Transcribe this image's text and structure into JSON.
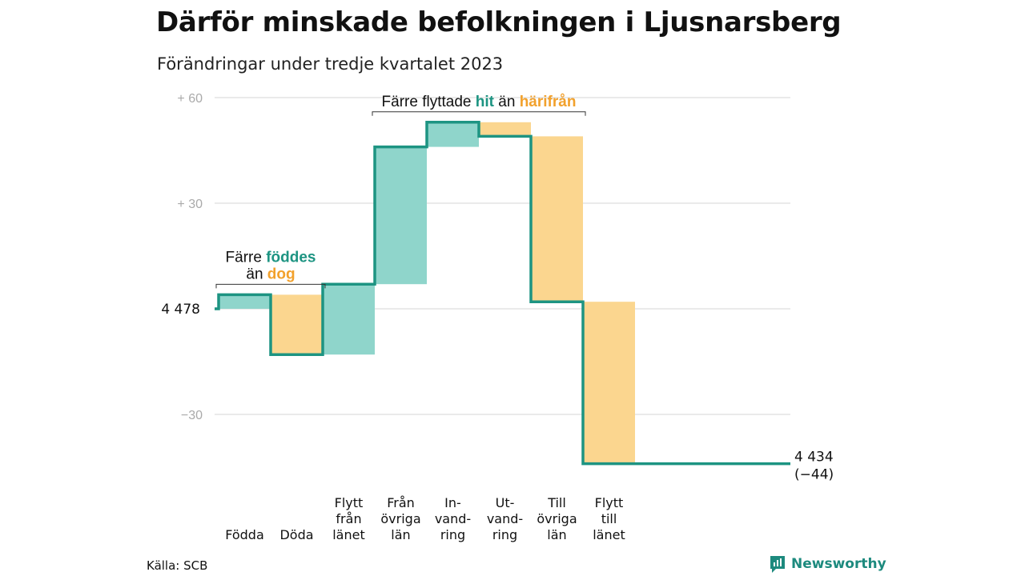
{
  "title": "Därför minskade befolkningen i Ljusnarsberg",
  "subtitle": "Förändringar under tredje kvartalet 2023",
  "source": "Källa: SCB",
  "brand": "Newsworthy",
  "colors": {
    "increase": "#8fd5cb",
    "decrease": "#fbd68f",
    "line": "#1d9482",
    "accent_teal": "#1d9482",
    "accent_orange": "#f2a12c",
    "grid": "#dddddd",
    "axis_text": "#aaaaaa"
  },
  "chart_data": {
    "type": "waterfall",
    "start_label": "4  478",
    "end_label": "4 434",
    "end_change": "(−44)",
    "yticks": [
      {
        "value": 60,
        "label": "+  60"
      },
      {
        "value": 30,
        "label": "+  30"
      },
      {
        "value": -30,
        "label": "−30"
      }
    ],
    "ylim": [
      -50,
      62
    ],
    "steps": [
      {
        "label_lines": [
          "Födda"
        ],
        "delta": 4,
        "kind": "increase"
      },
      {
        "label_lines": [
          "Döda"
        ],
        "delta": -17,
        "kind": "decrease"
      },
      {
        "label_lines": [
          "Flytt",
          "från",
          "länet"
        ],
        "delta": 20,
        "kind": "increase"
      },
      {
        "label_lines": [
          "Från",
          "övriga",
          "län"
        ],
        "delta": 39,
        "kind": "increase"
      },
      {
        "label_lines": [
          "In-",
          "vand-",
          "ring"
        ],
        "delta": 7,
        "kind": "increase"
      },
      {
        "label_lines": [
          "Ut-",
          "vand-",
          "ring"
        ],
        "delta": -4,
        "kind": "decrease"
      },
      {
        "label_lines": [
          "Till",
          "övriga",
          "län"
        ],
        "delta": -47,
        "kind": "decrease"
      },
      {
        "label_lines": [
          "Flytt",
          "till",
          "länet"
        ],
        "delta": -46,
        "kind": "decrease"
      }
    ],
    "annotations": [
      {
        "span": [
          0,
          1
        ],
        "parts": [
          {
            "line": 0,
            "text": "Färre ",
            "style": "plain"
          },
          {
            "line": 0,
            "text": "föddes",
            "style": "teal"
          },
          {
            "line": 1,
            "text": "än ",
            "style": "plain"
          },
          {
            "line": 1,
            "text": "dog",
            "style": "orange"
          }
        ]
      },
      {
        "span": [
          3,
          6
        ],
        "parts": [
          {
            "line": 0,
            "text": "Färre flyttade ",
            "style": "plain"
          },
          {
            "line": 0,
            "text": "hit",
            "style": "teal"
          },
          {
            "line": 0,
            "text": " än ",
            "style": "plain"
          },
          {
            "line": 0,
            "text": "härifrån",
            "style": "orange"
          }
        ]
      }
    ]
  }
}
